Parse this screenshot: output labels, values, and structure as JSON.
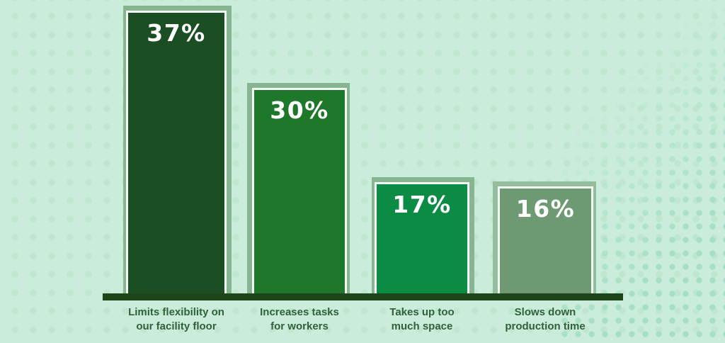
{
  "chart_data": {
    "type": "bar",
    "categories": [
      "Limits flexibility on our facility floor",
      "Increases tasks for workers",
      "Takes up too much space",
      "Slows down production time"
    ],
    "values": [
      37,
      30,
      17,
      16
    ],
    "data_labels": [
      "37%",
      "30%",
      "17%",
      "16%"
    ],
    "title": "",
    "xlabel": "",
    "ylabel": "",
    "ylim": [
      0,
      40
    ],
    "grid": false,
    "legend": null,
    "bar_colors": [
      "#1b4e22",
      "#1e7829",
      "#0b8b44",
      "#6d9a72"
    ],
    "shadow_color": "#87b491",
    "background_color": "#c9edda",
    "axis_color": "#1e4517",
    "category_label_color": "#31603a",
    "value_label_color": "#ffffff"
  },
  "bars": [
    {
      "value_label": "37%",
      "label_lines": [
        "Limits flexibility on",
        "our facility floor"
      ]
    },
    {
      "value_label": "30%",
      "label_lines": [
        "Increases tasks",
        "for workers"
      ]
    },
    {
      "value_label": "17%",
      "label_lines": [
        "Takes up too",
        "much space"
      ]
    },
    {
      "value_label": "16%",
      "label_lines": [
        "Slows down",
        "production time"
      ]
    }
  ]
}
